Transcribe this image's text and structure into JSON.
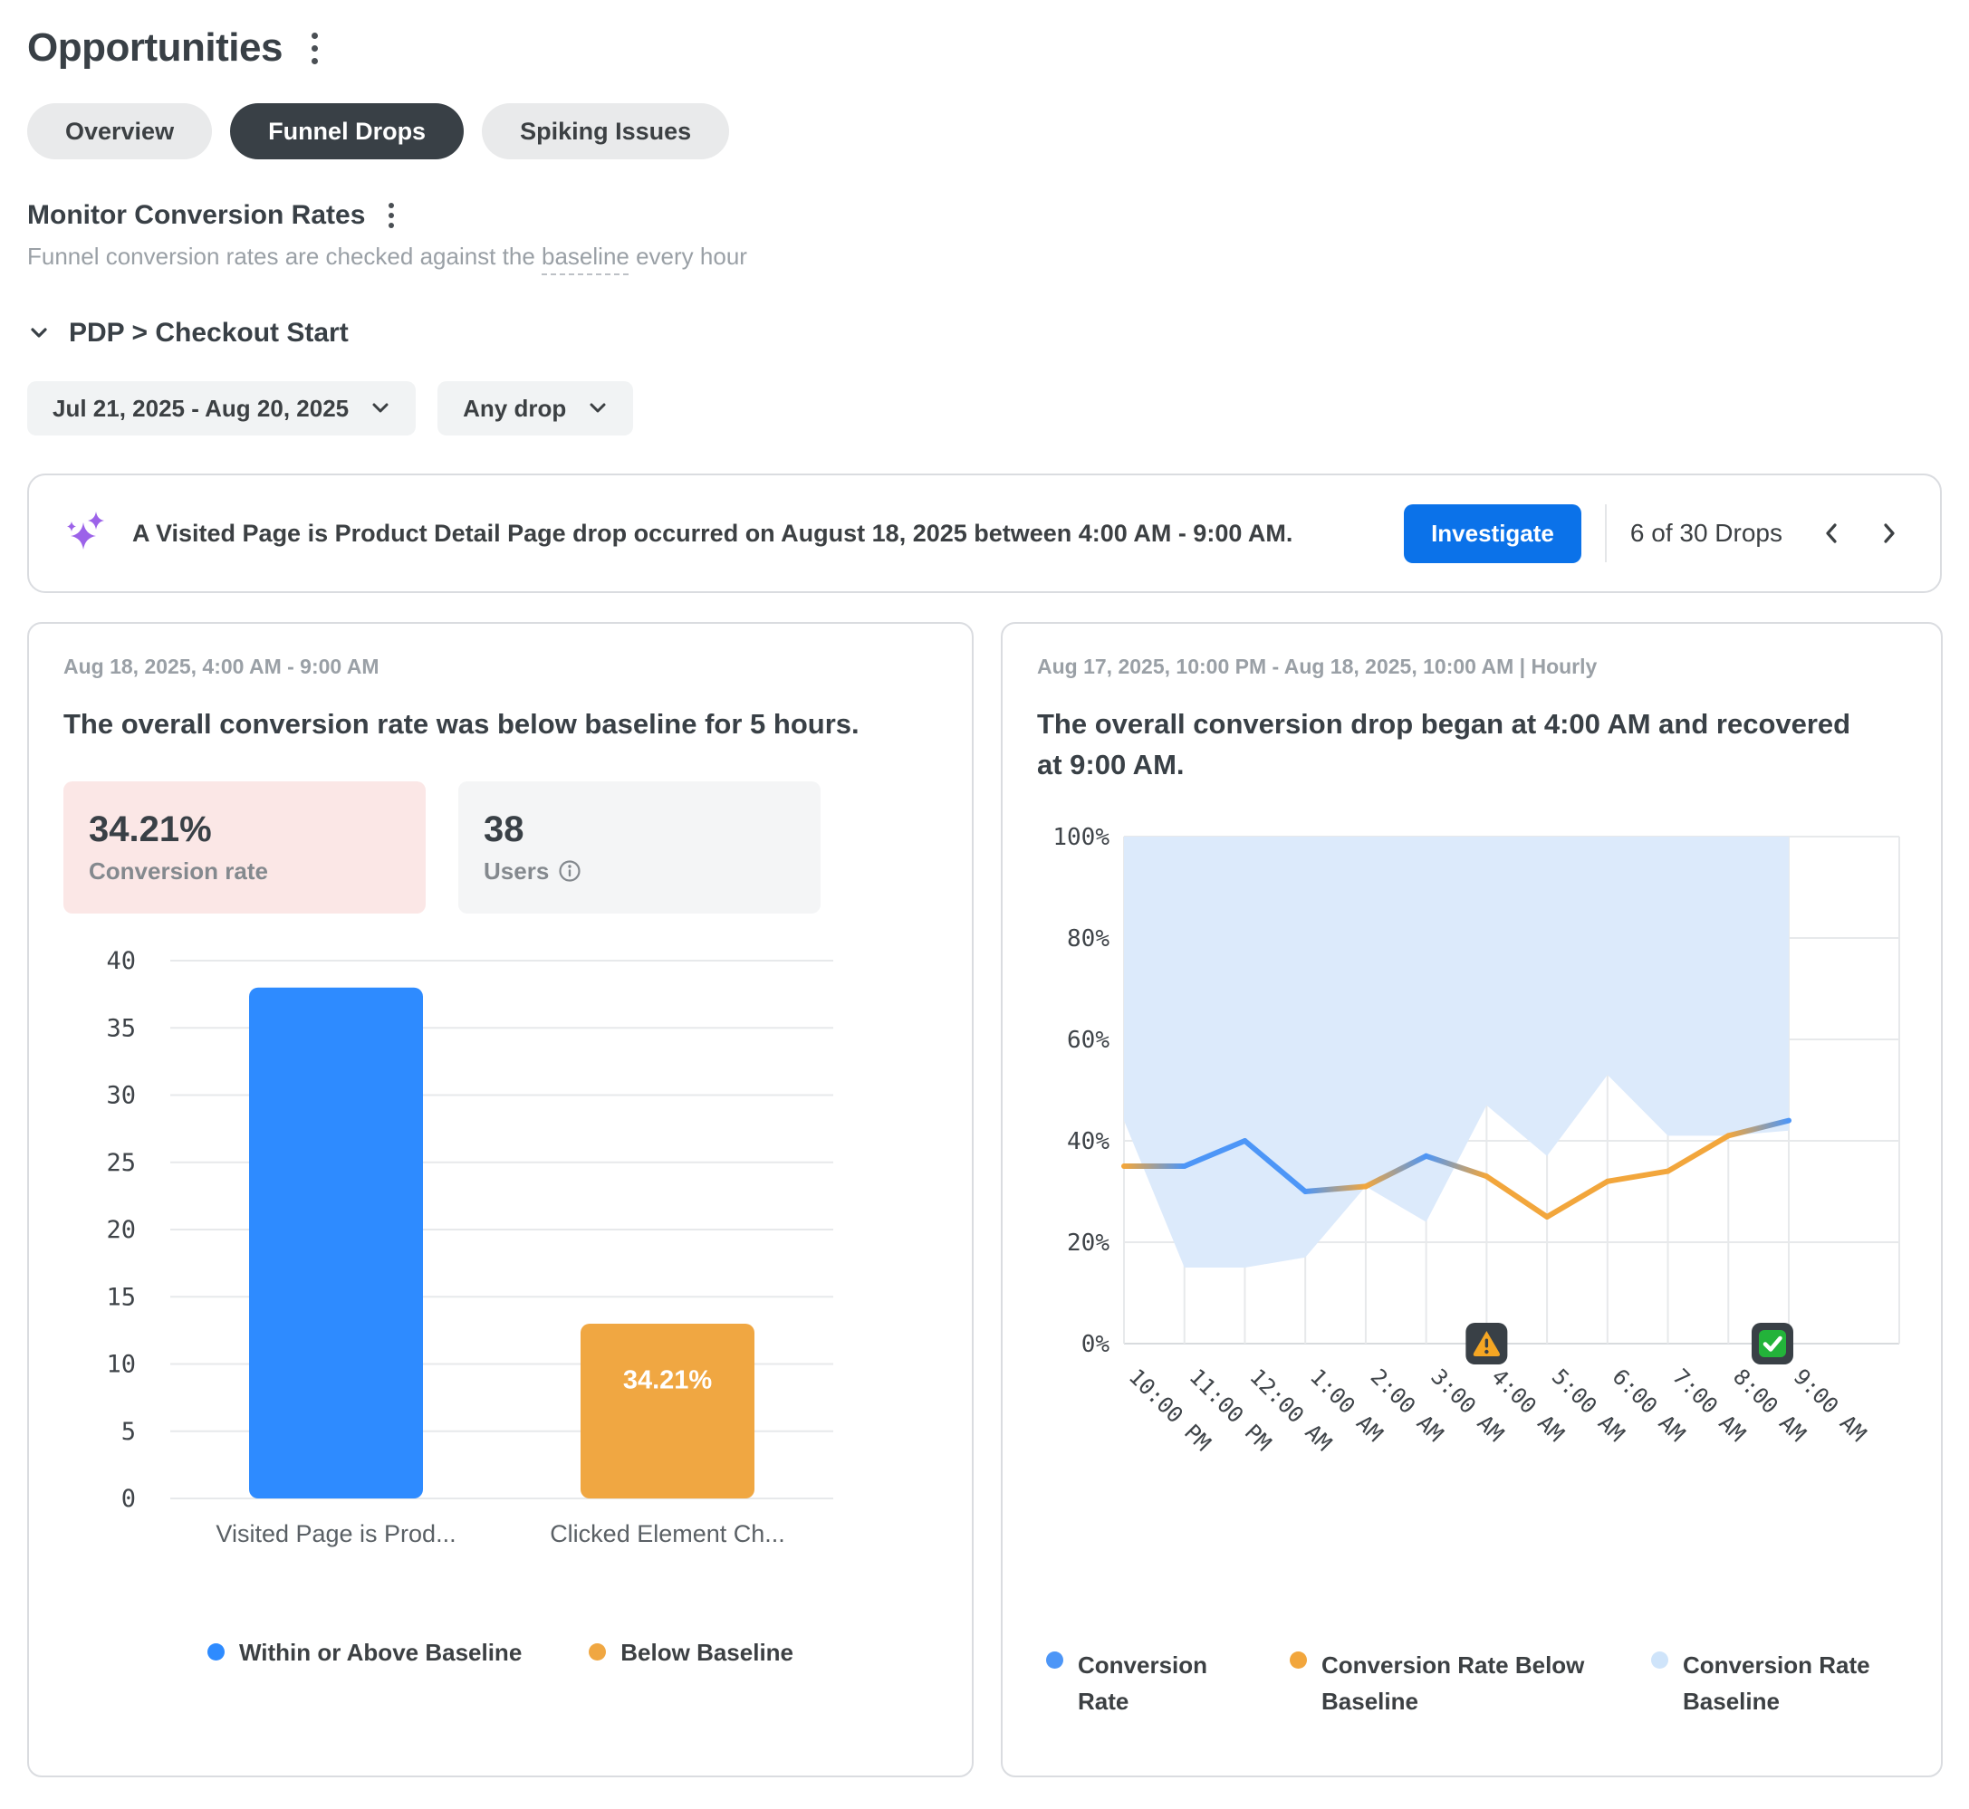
{
  "header": {
    "title": "Opportunities"
  },
  "tabs": [
    {
      "label": "Overview",
      "active": false
    },
    {
      "label": "Funnel Drops",
      "active": true
    },
    {
      "label": "Spiking Issues",
      "active": false
    }
  ],
  "monitor": {
    "title": "Monitor Conversion Rates",
    "subtitle_prefix": "Funnel conversion rates are checked against the ",
    "subtitle_underlined": "baseline",
    "subtitle_suffix": " every hour"
  },
  "funnel": {
    "name": "PDP > Checkout Start"
  },
  "filters": {
    "date_range": "Jul 21, 2025 - Aug 20, 2025",
    "drop_filter": "Any drop"
  },
  "banner": {
    "message": "A Visited Page is Product Detail Page drop occurred on August 18, 2025 between 4:00 AM - 9:00 AM.",
    "investigate_label": "Investigate",
    "pagination": "6 of 30 Drops"
  },
  "left_card": {
    "date_range": "Aug 18, 2025, 4:00 AM - 9:00 AM",
    "heading": "The overall conversion rate was below baseline for 5 hours.",
    "stats": [
      {
        "value": "34.21%",
        "label": "Conversion rate"
      },
      {
        "value": "38",
        "label": "Users"
      }
    ]
  },
  "right_card": {
    "date_range": "Aug 17, 2025, 10:00 PM - Aug 18, 2025, 10:00 AM | Hourly",
    "heading": "The overall conversion drop began at 4:00 AM and recovered at 9:00 AM."
  },
  "icons": {
    "title_menu": "kebab-vertical",
    "banner_icon": "ai-sparkle",
    "drop_marker": "warning-triangle-badge",
    "recovery_marker": "green-check-badge",
    "users_info": "info-circle"
  },
  "colors": {
    "bar_within": "#2E8BFF",
    "bar_below": "#F0A742",
    "line_above": "#4D96F7",
    "line_below": "#F2A63C",
    "band_fill": "#DCEAFB",
    "band_dot": "#CFE4FA",
    "button_blue": "#0B72E9",
    "accent_purple": "#9C63E9",
    "grid": "#E7E9EB",
    "axis_text": "#3F4449"
  },
  "chart_data": [
    {
      "type": "bar",
      "title": "The overall conversion rate was below baseline for 5 hours.",
      "categories": [
        "Visited Page is Prod...",
        "Clicked Element Ch..."
      ],
      "values": [
        38,
        13
      ],
      "bar_labels": [
        "",
        "34.21%"
      ],
      "bar_status": [
        "within",
        "below"
      ],
      "xlabel": "",
      "ylabel": "",
      "ylim": [
        0,
        40
      ],
      "ytick_step": 5,
      "grid": "horizontal",
      "legend_position": "bottom",
      "legend": [
        {
          "label": "Within or Above Baseline",
          "color_key": "bar_within"
        },
        {
          "label": "Below Baseline",
          "color_key": "bar_below"
        }
      ]
    },
    {
      "type": "line",
      "title": "The overall conversion drop began at 4:00 AM and recovered at 9:00 AM.",
      "x": [
        "10:00 PM",
        "11:00 PM",
        "12:00 AM",
        "1:00 AM",
        "2:00 AM",
        "3:00 AM",
        "4:00 AM",
        "5:00 AM",
        "6:00 AM",
        "7:00 AM",
        "8:00 AM",
        "9:00 AM"
      ],
      "ylim": [
        0,
        100
      ],
      "yticks": [
        "0%",
        "20%",
        "40%",
        "60%",
        "80%",
        "100%"
      ],
      "grid": "both",
      "series": [
        {
          "name": "Conversion Rate",
          "values": [
            35,
            35,
            40,
            30,
            31,
            37,
            33,
            25,
            32,
            34,
            41,
            44
          ],
          "status": [
            "below",
            "above",
            "above",
            "above",
            "below",
            "above",
            "below",
            "below",
            "below",
            "below",
            "below",
            "above"
          ]
        },
        {
          "name": "Conversion Rate Baseline",
          "band_lower": [
            44,
            15,
            15,
            17,
            31,
            24,
            47,
            37,
            53,
            41,
            41,
            42
          ],
          "band_upper": [
            100,
            100,
            100,
            100,
            100,
            100,
            100,
            100,
            100,
            100,
            100,
            100
          ]
        }
      ],
      "annotations": [
        {
          "type": "drop-start-warning",
          "x": "4:00 AM"
        },
        {
          "type": "recovered-check",
          "x": "9:00 AM"
        }
      ],
      "legend_position": "bottom",
      "legend": [
        {
          "label": "Conversion Rate",
          "color_key": "line_above"
        },
        {
          "label": "Conversion Rate Below Baseline",
          "color_key": "line_below"
        },
        {
          "label": "Conversion Rate Baseline",
          "color_key": "band_dot"
        }
      ]
    }
  ]
}
